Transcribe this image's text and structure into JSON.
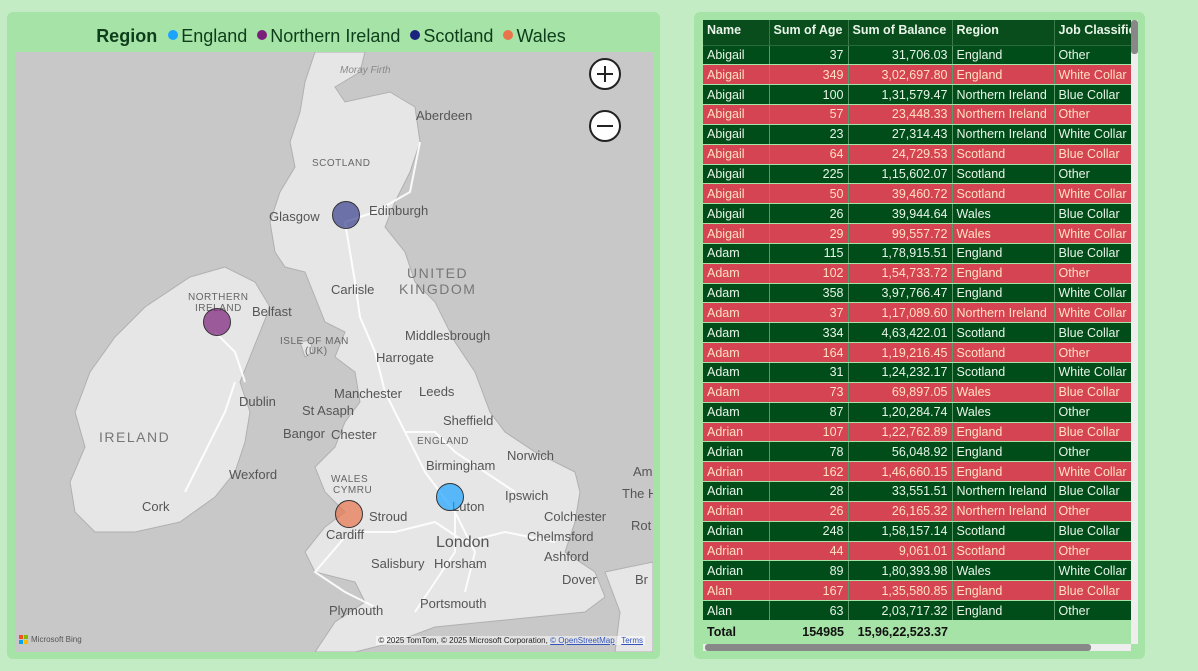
{
  "legend": {
    "title": "Region",
    "items": [
      {
        "label": "England",
        "color": "#1aa3ff"
      },
      {
        "label": "Northern Ireland",
        "color": "#7a1f7a"
      },
      {
        "label": "Scotland",
        "color": "#1a237e"
      },
      {
        "label": "Wales",
        "color": "#e8744a"
      }
    ]
  },
  "map": {
    "labels": {
      "moray_firth": "Moray Firth",
      "aberdeen": "Aberdeen",
      "scotland": "SCOTLAND",
      "glasgow": "Glasgow",
      "edinburgh": "Edinburgh",
      "united": "UNITED",
      "kingdom": "KINGDOM",
      "carlisle": "Carlisle",
      "northern": "NORTHERN",
      "ireland_ni": "IRELAND",
      "belfast": "Belfast",
      "isle": "ISLE OF MAN",
      "uk": "(UK)",
      "middlesbrough": "Middlesbrough",
      "harrogate": "Harrogate",
      "manchester": "Manchester",
      "leeds": "Leeds",
      "dublin": "Dublin",
      "st_asaph": "St Asaph",
      "sheffield": "Sheffield",
      "ireland": "IRELAND",
      "bangor": "Bangor",
      "chester": "Chester",
      "england": "ENGLAND",
      "norwich": "Norwich",
      "birmingham": "Birmingham",
      "wexford": "Wexford",
      "wales": "WALES",
      "cymru": "CYMRU",
      "ipswich": "Ipswich",
      "cork": "Cork",
      "luton": "Luton",
      "colchester": "Colchester",
      "stroud": "Stroud",
      "cardiff": "Cardiff",
      "chelmsford": "Chelmsford",
      "london": "London",
      "ashford": "Ashford",
      "salisbury": "Salisbury",
      "horsham": "Horsham",
      "dover": "Dover",
      "plymouth": "Plymouth",
      "portsmouth": "Portsmouth",
      "am": "Am",
      "the_h": "The H",
      "rot": "Rot",
      "br": "Br"
    },
    "bing_label": "Microsoft Bing",
    "attribution": "© 2025 TomTom, © 2025 Microsoft Corporation,",
    "osm_link": "© OpenStreetMap",
    "terms_link": "Terms"
  },
  "table": {
    "columns": [
      "Name",
      "Sum of Age",
      "Sum of Balance",
      "Region",
      "Job Classification"
    ],
    "rows": [
      {
        "name": "Abigail",
        "age": "37",
        "balance": "31,706.03",
        "region": "England",
        "job": "Other",
        "style": "dark"
      },
      {
        "name": "Abigail",
        "age": "349",
        "balance": "3,02,697.80",
        "region": "England",
        "job": "White Collar",
        "style": "red"
      },
      {
        "name": "Abigail",
        "age": "100",
        "balance": "1,31,579.47",
        "region": "Northern Ireland",
        "job": "Blue Collar",
        "style": "dark"
      },
      {
        "name": "Abigail",
        "age": "57",
        "balance": "23,448.33",
        "region": "Northern Ireland",
        "job": "Other",
        "style": "red"
      },
      {
        "name": "Abigail",
        "age": "23",
        "balance": "27,314.43",
        "region": "Northern Ireland",
        "job": "White Collar",
        "style": "dark"
      },
      {
        "name": "Abigail",
        "age": "64",
        "balance": "24,729.53",
        "region": "Scotland",
        "job": "Blue Collar",
        "style": "red"
      },
      {
        "name": "Abigail",
        "age": "225",
        "balance": "1,15,602.07",
        "region": "Scotland",
        "job": "Other",
        "style": "dark"
      },
      {
        "name": "Abigail",
        "age": "50",
        "balance": "39,460.72",
        "region": "Scotland",
        "job": "White Collar",
        "style": "red"
      },
      {
        "name": "Abigail",
        "age": "26",
        "balance": "39,944.64",
        "region": "Wales",
        "job": "Blue Collar",
        "style": "dark"
      },
      {
        "name": "Abigail",
        "age": "29",
        "balance": "99,557.72",
        "region": "Wales",
        "job": "White Collar",
        "style": "red"
      },
      {
        "name": "Adam",
        "age": "115",
        "balance": "1,78,915.51",
        "region": "England",
        "job": "Blue Collar",
        "style": "dark"
      },
      {
        "name": "Adam",
        "age": "102",
        "balance": "1,54,733.72",
        "region": "England",
        "job": "Other",
        "style": "red"
      },
      {
        "name": "Adam",
        "age": "358",
        "balance": "3,97,766.47",
        "region": "England",
        "job": "White Collar",
        "style": "dark"
      },
      {
        "name": "Adam",
        "age": "37",
        "balance": "1,17,089.60",
        "region": "Northern Ireland",
        "job": "White Collar",
        "style": "red"
      },
      {
        "name": "Adam",
        "age": "334",
        "balance": "4,63,422.01",
        "region": "Scotland",
        "job": "Blue Collar",
        "style": "dark"
      },
      {
        "name": "Adam",
        "age": "164",
        "balance": "1,19,216.45",
        "region": "Scotland",
        "job": "Other",
        "style": "red"
      },
      {
        "name": "Adam",
        "age": "31",
        "balance": "1,24,232.17",
        "region": "Scotland",
        "job": "White Collar",
        "style": "dark"
      },
      {
        "name": "Adam",
        "age": "73",
        "balance": "69,897.05",
        "region": "Wales",
        "job": "Blue Collar",
        "style": "red"
      },
      {
        "name": "Adam",
        "age": "87",
        "balance": "1,20,284.74",
        "region": "Wales",
        "job": "Other",
        "style": "dark"
      },
      {
        "name": "Adrian",
        "age": "107",
        "balance": "1,22,762.89",
        "region": "England",
        "job": "Blue Collar",
        "style": "red"
      },
      {
        "name": "Adrian",
        "age": "78",
        "balance": "56,048.92",
        "region": "England",
        "job": "Other",
        "style": "dark"
      },
      {
        "name": "Adrian",
        "age": "162",
        "balance": "1,46,660.15",
        "region": "England",
        "job": "White Collar",
        "style": "red"
      },
      {
        "name": "Adrian",
        "age": "28",
        "balance": "33,551.51",
        "region": "Northern Ireland",
        "job": "Blue Collar",
        "style": "dark"
      },
      {
        "name": "Adrian",
        "age": "26",
        "balance": "26,165.32",
        "region": "Northern Ireland",
        "job": "Other",
        "style": "red"
      },
      {
        "name": "Adrian",
        "age": "248",
        "balance": "1,58,157.14",
        "region": "Scotland",
        "job": "Blue Collar",
        "style": "dark"
      },
      {
        "name": "Adrian",
        "age": "44",
        "balance": "9,061.01",
        "region": "Scotland",
        "job": "Other",
        "style": "red"
      },
      {
        "name": "Adrian",
        "age": "89",
        "balance": "1,80,393.98",
        "region": "Wales",
        "job": "White Collar",
        "style": "dark"
      },
      {
        "name": "Alan",
        "age": "167",
        "balance": "1,35,580.85",
        "region": "England",
        "job": "Blue Collar",
        "style": "red"
      },
      {
        "name": "Alan",
        "age": "63",
        "balance": "2,03,717.32",
        "region": "England",
        "job": "Other",
        "style": "dark"
      }
    ],
    "total": {
      "label": "Total",
      "age": "154985",
      "balance": "15,96,22,523.37"
    }
  }
}
